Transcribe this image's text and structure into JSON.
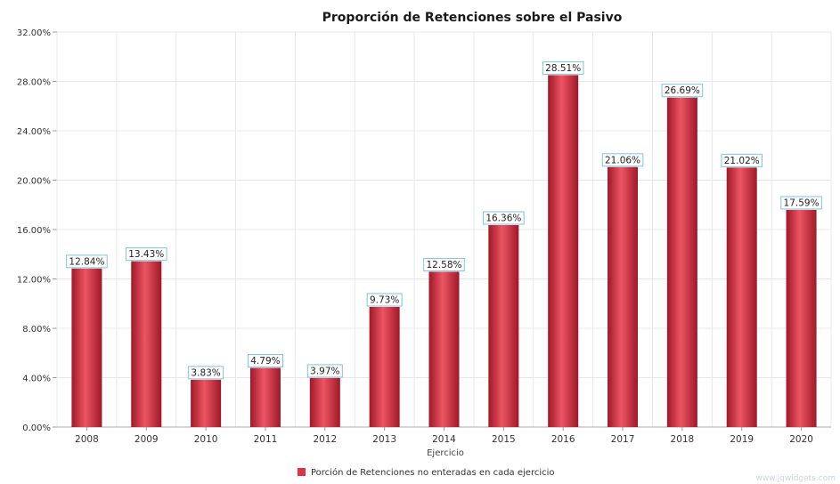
{
  "chart_data": {
    "type": "bar",
    "title": "Proporción de Retenciones sobre el Pasivo",
    "xlabel": "Ejercicio",
    "ylabel": "",
    "categories": [
      "2008",
      "2009",
      "2010",
      "2011",
      "2012",
      "2013",
      "2014",
      "2015",
      "2016",
      "2017",
      "2018",
      "2019",
      "2020"
    ],
    "series": [
      {
        "name": "Porción de Retenciones no enteradas en cada ejercicio",
        "values": [
          12.84,
          13.43,
          3.83,
          4.79,
          3.97,
          9.73,
          12.58,
          16.36,
          28.51,
          21.06,
          26.69,
          21.02,
          17.59
        ],
        "labels": [
          "12.84%",
          "13.43%",
          "3.83%",
          "4.79%",
          "3.97%",
          "9.73%",
          "12.58%",
          "16.36%",
          "28.51%",
          "21.06%",
          "26.69%",
          "21.02%",
          "17.59%"
        ]
      }
    ],
    "yticks": [
      "0.00%",
      "4.00%",
      "8.00%",
      "12.00%",
      "16.00%",
      "20.00%",
      "24.00%",
      "28.00%",
      "32.00%"
    ],
    "ylim": [
      0,
      32
    ],
    "grid": true,
    "legend_position": "bottom-center",
    "colors": {
      "bar": "#d93545",
      "bar_dark": "#a01828",
      "bar_light": "#ec5563",
      "label_border": "#7ec3e6",
      "grid": "#e4e8ee"
    }
  },
  "watermark": "www.jqwidgets.com"
}
